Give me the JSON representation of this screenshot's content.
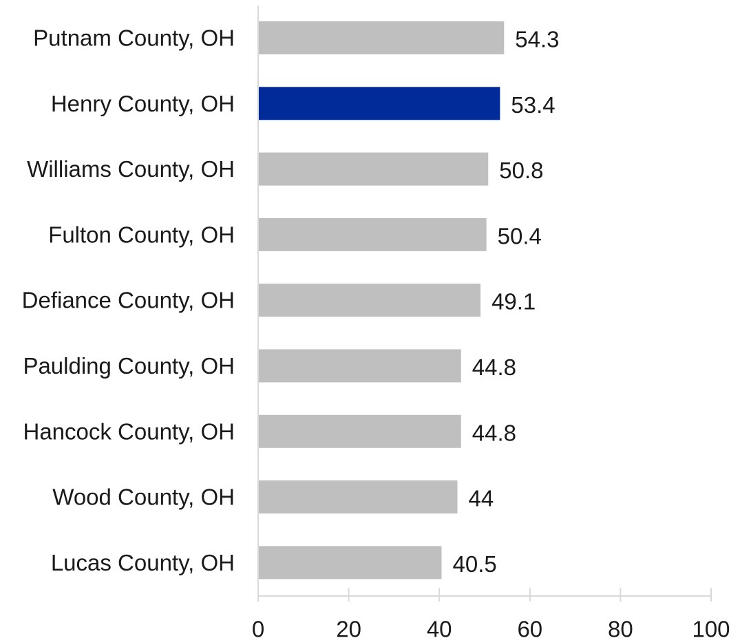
{
  "chart_data": {
    "type": "bar",
    "orientation": "horizontal",
    "categories": [
      "Putnam County, OH",
      "Henry County, OH",
      "Williams County, OH",
      "Fulton County, OH",
      "Defiance County, OH",
      "Paulding County, OH",
      "Hancock County, OH",
      "Wood County, OH",
      "Lucas County, OH"
    ],
    "values": [
      54.3,
      53.4,
      50.8,
      50.4,
      49.1,
      44.8,
      44.8,
      44,
      40.5
    ],
    "value_labels": [
      "54.3",
      "53.4",
      "50.8",
      "50.4",
      "49.1",
      "44.8",
      "44.8",
      "44",
      "40.5"
    ],
    "highlight_category": "Henry County, OH",
    "xlim": [
      0,
      100
    ],
    "xticks": [
      0,
      20,
      40,
      60,
      80,
      100
    ],
    "xtick_labels": [
      "0",
      "20",
      "40",
      "60",
      "80",
      "100"
    ],
    "grid": false,
    "legend": "none",
    "title": "",
    "xlabel": "",
    "ylabel": ""
  },
  "colors": {
    "bar": "#bfbfbf",
    "highlight": "#002b99",
    "axis": "#d9d9d9",
    "text": "#1a1a1a"
  }
}
